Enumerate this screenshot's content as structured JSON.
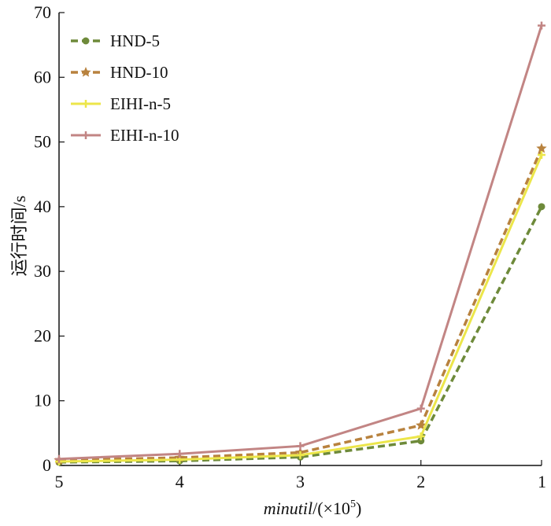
{
  "chart_data": {
    "type": "line",
    "x": [
      5,
      4,
      3,
      2,
      1
    ],
    "xlim": [
      5,
      1
    ],
    "ylim": [
      0,
      70
    ],
    "xticks": [
      "5",
      "4",
      "3",
      "2",
      "1"
    ],
    "yticks": [
      "0",
      "10",
      "20",
      "30",
      "40",
      "50",
      "60",
      "70"
    ],
    "xlabel_main": "minutil",
    "xlabel_suffix": "/(×10",
    "xlabel_exp": "5",
    "xlabel_close": ")",
    "ylabel": "运行时间/s",
    "grid": false,
    "legend_position": "top-left",
    "series": [
      {
        "name": "HND-5",
        "values": [
          0.5,
          0.7,
          1.3,
          3.8,
          40
        ],
        "color": "#6e8a3a",
        "dash": true,
        "marker": "circle"
      },
      {
        "name": "HND-10",
        "values": [
          0.8,
          1.2,
          2.0,
          6.2,
          49
        ],
        "color": "#b8823e",
        "dash": true,
        "marker": "star"
      },
      {
        "name": "EIHI-n-5",
        "values": [
          0.6,
          0.9,
          1.6,
          4.5,
          48
        ],
        "color": "#ece64a",
        "dash": false,
        "marker": "plus"
      },
      {
        "name": "EIHI-n-10",
        "values": [
          1.0,
          1.8,
          3.0,
          8.8,
          68
        ],
        "color": "#c28584",
        "dash": false,
        "marker": "plus"
      }
    ]
  }
}
